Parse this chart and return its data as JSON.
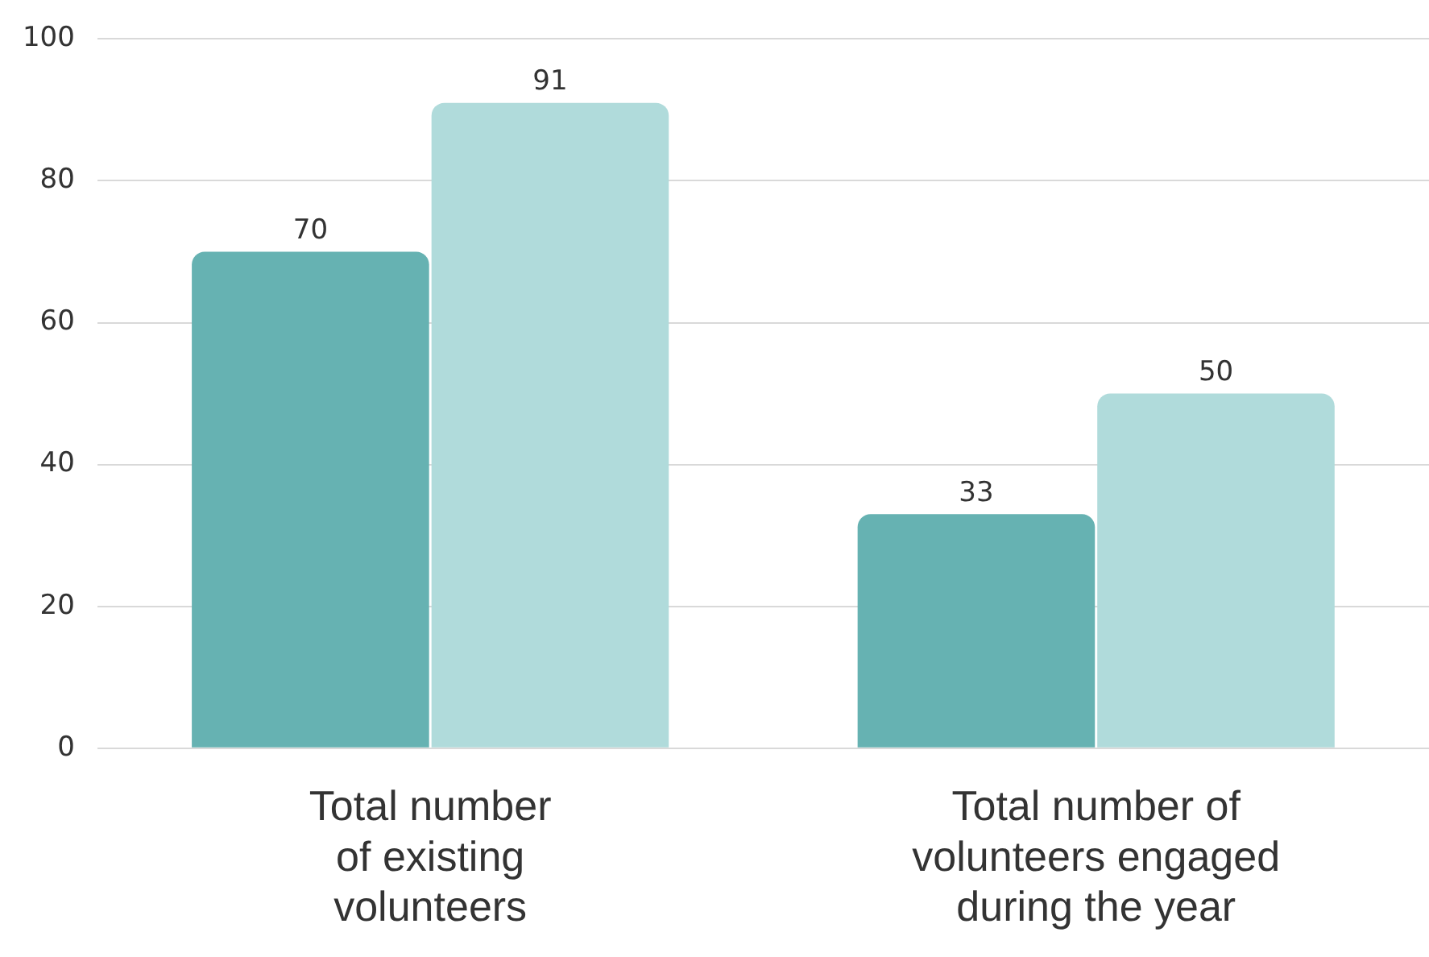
{
  "chart_data": {
    "type": "bar",
    "categories": [
      "Total number of existing volunteers",
      "Total number of volunteers engaged during the year"
    ],
    "series": [
      {
        "color": "#66b2b2",
        "values": [
          70,
          33
        ]
      },
      {
        "color": "#b0dbdb",
        "values": [
          91,
          50
        ]
      }
    ],
    "ylim": [
      0,
      100
    ],
    "yticks": [
      0,
      20,
      40,
      60,
      80,
      100
    ],
    "grid": "y",
    "legend": false,
    "data_labels": true
  }
}
